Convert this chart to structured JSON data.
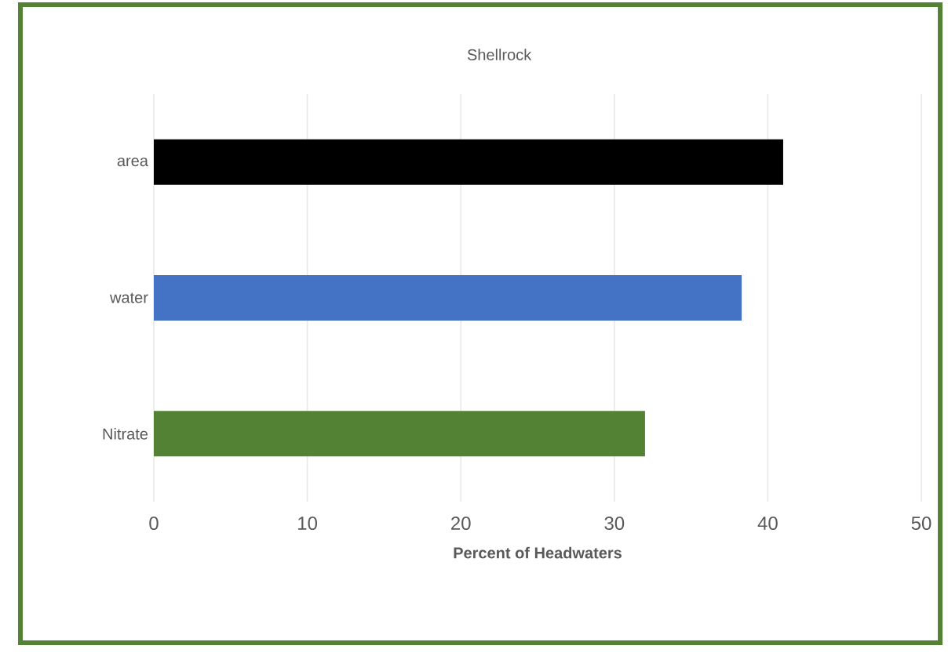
{
  "chart_data": {
    "type": "bar",
    "orientation": "horizontal",
    "title": "Shellrock",
    "xlabel": "Percent of Headwaters",
    "categories": [
      "area",
      "water",
      "Nitrate"
    ],
    "values": [
      41,
      38.3,
      32
    ],
    "colors": [
      "#000000",
      "#4472c4",
      "#548235"
    ],
    "xlim": [
      0,
      50
    ],
    "xticks": [
      0,
      10,
      20,
      30,
      40,
      50
    ],
    "grid": "x"
  }
}
